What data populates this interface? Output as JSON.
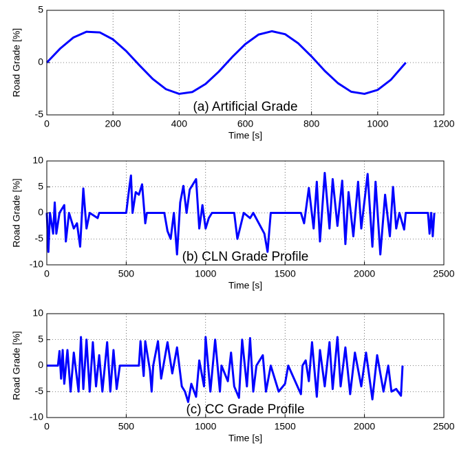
{
  "chart_data": [
    {
      "type": "line",
      "annotation": "(a) Artificial Grade",
      "x_label": "Time [s]",
      "y_label": "Road Grade [%]",
      "xlim": [
        0,
        1200
      ],
      "ylim": [
        -5,
        5
      ],
      "xticks": [
        0,
        200,
        400,
        600,
        800,
        1000,
        1200
      ],
      "yticks": [
        -5,
        0,
        5
      ],
      "grid": true,
      "x": [
        0,
        40,
        80,
        120,
        160,
        200,
        240,
        280,
        320,
        360,
        400,
        440,
        480,
        520,
        560,
        600,
        640,
        680,
        720,
        760,
        800,
        840,
        880,
        920,
        960,
        1000,
        1040,
        1085
      ],
      "series": [
        {
          "color": "#0000ff",
          "values": [
            0,
            1.33,
            2.39,
            2.95,
            2.89,
            2.22,
            1.1,
            -0.26,
            -1.56,
            -2.54,
            -2.99,
            -2.81,
            -2.04,
            -0.86,
            0.52,
            1.77,
            2.68,
            3.0,
            2.72,
            1.84,
            0.59,
            -0.79,
            -1.97,
            -2.79,
            -2.99,
            -2.61,
            -1.64,
            0
          ]
        }
      ]
    },
    {
      "type": "line",
      "annotation": "(b) CLN Grade Profile",
      "x_label": "Time [s]",
      "y_label": "Road Grade [%]",
      "xlim": [
        0,
        2500
      ],
      "ylim": [
        -10,
        10
      ],
      "xticks": [
        0,
        500,
        1000,
        1500,
        2000,
        2500
      ],
      "yticks": [
        -10,
        -5,
        0,
        5,
        10
      ],
      "grid": true,
      "x": [
        0,
        10,
        20,
        40,
        50,
        60,
        80,
        110,
        120,
        140,
        170,
        190,
        210,
        230,
        250,
        270,
        320,
        330,
        500,
        520,
        530,
        540,
        560,
        580,
        600,
        620,
        630,
        740,
        760,
        780,
        800,
        820,
        840,
        860,
        880,
        900,
        940,
        960,
        980,
        1000,
        1020,
        1040,
        1180,
        1200,
        1240,
        1280,
        1300,
        1370,
        1390,
        1410,
        1600,
        1620,
        1650,
        1680,
        1700,
        1720,
        1750,
        1780,
        1800,
        1830,
        1860,
        1880,
        1900,
        1930,
        1960,
        1980,
        2020,
        2050,
        2070,
        2100,
        2130,
        2160,
        2180,
        2200,
        2220,
        2250,
        2260,
        2400,
        2410,
        2420,
        2430,
        2440
      ],
      "series": [
        {
          "color": "#0000ff",
          "values": [
            0,
            -7.5,
            0,
            -4,
            2,
            -4,
            0,
            1.5,
            -5.5,
            0,
            -3,
            -2,
            -6.5,
            4.7,
            -3,
            0,
            -1,
            0,
            0,
            5,
            7.2,
            0,
            4,
            3.5,
            5.5,
            -2,
            0,
            0,
            -3.5,
            -5,
            0,
            -8,
            2,
            5.2,
            0,
            4.5,
            6.5,
            -3,
            1.5,
            -3,
            -1,
            0,
            0,
            -5,
            0,
            -1,
            0,
            -4,
            -7.5,
            0,
            0,
            -2,
            4.8,
            -3,
            6,
            -5.5,
            7.7,
            -3,
            6.5,
            -2.5,
            6.2,
            -6,
            4,
            -4.5,
            6,
            -3,
            7.5,
            -6.5,
            6,
            -8,
            3.5,
            -4.5,
            5,
            -3,
            0,
            -3.2,
            0,
            0,
            -4,
            0,
            -4.5,
            0
          ]
        }
      ]
    },
    {
      "type": "line",
      "annotation": "(c) CC Grade Profile",
      "x_label": "Time [s]",
      "y_label": "Road Grade [%]",
      "xlim": [
        0,
        2500
      ],
      "ylim": [
        -10,
        10
      ],
      "xticks": [
        0,
        500,
        1000,
        1500,
        2000,
        2500
      ],
      "yticks": [
        -10,
        -5,
        0,
        5,
        10
      ],
      "grid": true,
      "x": [
        0,
        70,
        80,
        90,
        100,
        110,
        130,
        150,
        170,
        200,
        215,
        230,
        250,
        270,
        290,
        310,
        330,
        350,
        380,
        400,
        420,
        440,
        460,
        580,
        590,
        610,
        620,
        650,
        660,
        670,
        700,
        720,
        760,
        790,
        820,
        850,
        870,
        890,
        910,
        940,
        960,
        990,
        1000,
        1030,
        1060,
        1090,
        1100,
        1140,
        1160,
        1180,
        1210,
        1230,
        1260,
        1280,
        1300,
        1320,
        1360,
        1380,
        1410,
        1460,
        1500,
        1520,
        1600,
        1610,
        1630,
        1650,
        1670,
        1700,
        1720,
        1750,
        1780,
        1800,
        1830,
        1850,
        1880,
        1910,
        1940,
        1980,
        2010,
        2050,
        2080,
        2120,
        2150,
        2170,
        2200,
        2230,
        2240
      ],
      "series": [
        {
          "color": "#0000ff",
          "values": [
            0,
            0,
            2.8,
            -2.5,
            3,
            -3.5,
            3,
            -5,
            2.5,
            -5,
            5.5,
            -4.5,
            5,
            -5,
            4.5,
            -4,
            2,
            -5,
            4.5,
            -5,
            3,
            -4.5,
            0,
            0,
            4.7,
            -2,
            4.7,
            -1,
            -5,
            0,
            4.7,
            -2.5,
            4.5,
            -1.5,
            3.5,
            -4,
            -5,
            -7,
            -3.5,
            -6,
            1,
            -4,
            5.5,
            -5,
            5,
            -5,
            0,
            -3,
            2.5,
            -4,
            -6.2,
            5,
            -4,
            5.3,
            -5,
            0,
            2,
            -5,
            0,
            -5,
            -3.5,
            0,
            -5.5,
            0,
            1,
            -3,
            4.5,
            -6,
            3,
            -4,
            4.5,
            -4.5,
            5.5,
            -4,
            3.5,
            -5.5,
            2.5,
            -4,
            2.5,
            -6.5,
            2,
            -5,
            0,
            -5,
            -4.5,
            -5.8,
            0
          ]
        }
      ]
    }
  ]
}
